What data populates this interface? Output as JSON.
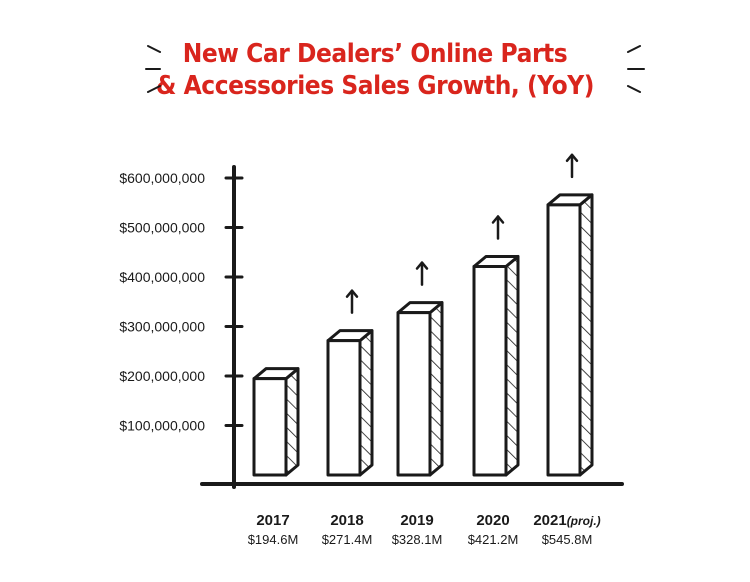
{
  "title": {
    "line1": "New Car Dealers’ Online Parts",
    "line2": "& Accessories Sales Growth, (YoY)"
  },
  "colors": {
    "title": "#d9251d",
    "ink": "#1a1a1a",
    "bar_face": "#ffffff"
  },
  "decorations": {
    "title_burst": "sparkle-lines",
    "growth_marker": "up-arrow"
  },
  "chart_data": {
    "type": "bar",
    "style": "hand-drawn 3D bars with hatched side faces, up-arrows above bars 2018–2021",
    "categories": [
      "2017",
      "2018",
      "2019",
      "2020",
      "2021"
    ],
    "category_suffix": [
      "",
      "",
      "",
      "",
      "(proj.)"
    ],
    "values": [
      194.6,
      271.4,
      328.1,
      421.2,
      545.8
    ],
    "value_labels": [
      "$194.6M",
      "$271.4M",
      "$328.1M",
      "$421.2M",
      "$545.8M"
    ],
    "growth_arrows": [
      false,
      true,
      true,
      true,
      true
    ],
    "yticks": [
      100000000,
      200000000,
      300000000,
      400000000,
      500000000,
      600000000
    ],
    "ytick_labels": [
      "$100,000,000",
      "$200,000,000",
      "$300,000,000",
      "$400,000,000",
      "$500,000,000",
      "$600,000,000"
    ],
    "ylim": [
      0,
      600000000
    ],
    "xlabel": "",
    "ylabel": "",
    "grid": false,
    "legend": "none"
  }
}
